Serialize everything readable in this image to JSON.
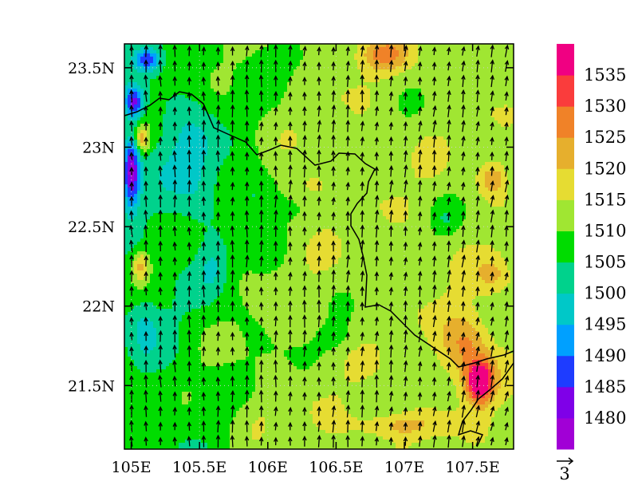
{
  "chart_data": {
    "type": "heatmap",
    "title": "",
    "xlabel": "",
    "ylabel": "",
    "x_ticks": [
      "105E",
      "105.5E",
      "106E",
      "106.5E",
      "107E",
      "107.5E"
    ],
    "y_ticks": [
      "23.5N",
      "23N",
      "22.5N",
      "22N",
      "21.5N"
    ],
    "xlim": [
      104.95,
      107.8
    ],
    "ylim": [
      21.1,
      23.65
    ],
    "grid": true,
    "overlay": "wind vectors (arrows, predominantly southerly)",
    "reference_vector_label": "3",
    "colorbar": {
      "labels": [
        "1480",
        "1485",
        "1490",
        "1495",
        "1500",
        "1505",
        "1510",
        "1515",
        "1520",
        "1525",
        "1530",
        "1535"
      ],
      "colors": [
        "#a100d6",
        "#7f00e8",
        "#1e3cff",
        "#00a0ff",
        "#00c8c8",
        "#00d28c",
        "#00dc00",
        "#a0e632",
        "#e6dc32",
        "#e6af2d",
        "#f08228",
        "#fa3c3c",
        "#f00082"
      ]
    }
  }
}
